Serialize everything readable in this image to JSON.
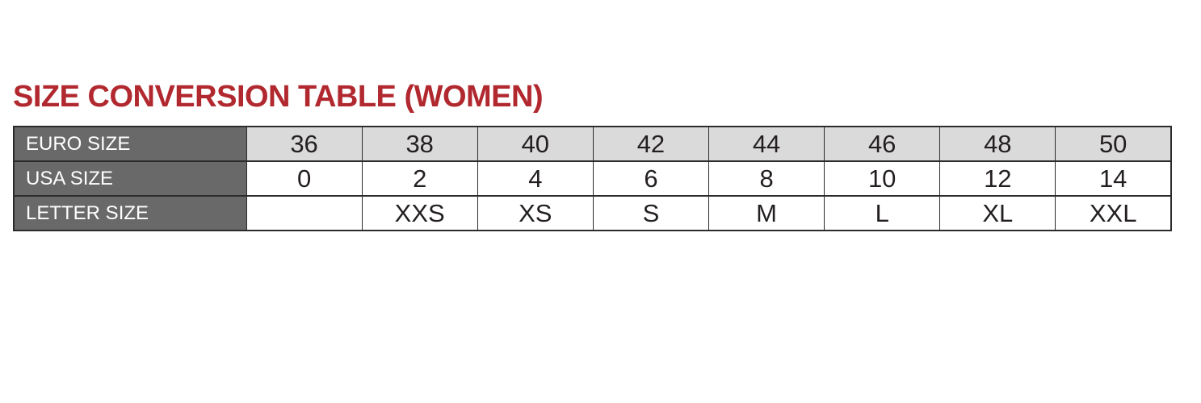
{
  "page": {
    "title": "SIZE CONVERSION TABLE (WOMEN)"
  },
  "colors": {
    "title_red": "#b1282f",
    "label_column_bg": "#696969",
    "label_column_text": "#ffffff",
    "euro_row_bg": "#dadada",
    "data_row_bg": "#ffffff",
    "table_border": "#2b2b2b",
    "cell_text": "#231f20"
  },
  "table": {
    "rows": [
      {
        "label": "EURO SIZE",
        "values": [
          "36",
          "38",
          "40",
          "42",
          "44",
          "46",
          "48",
          "50"
        ]
      },
      {
        "label": "USA SIZE",
        "values": [
          "0",
          "2",
          "4",
          "6",
          "8",
          "10",
          "12",
          "14"
        ]
      },
      {
        "label": "LETTER SIZE",
        "values": [
          "",
          "XXS",
          "XS",
          "S",
          "M",
          "L",
          "XL",
          "XXL"
        ]
      }
    ]
  },
  "chart_data": {
    "type": "table",
    "title": "SIZE CONVERSION TABLE (WOMEN)",
    "row_headers": [
      "EURO SIZE",
      "USA SIZE",
      "LETTER SIZE"
    ],
    "rows": [
      [
        "36",
        "38",
        "40",
        "42",
        "44",
        "46",
        "48",
        "50"
      ],
      [
        "0",
        "2",
        "4",
        "6",
        "8",
        "10",
        "12",
        "14"
      ],
      [
        "",
        "XXS",
        "XS",
        "S",
        "M",
        "L",
        "XL",
        "XXL"
      ]
    ]
  }
}
